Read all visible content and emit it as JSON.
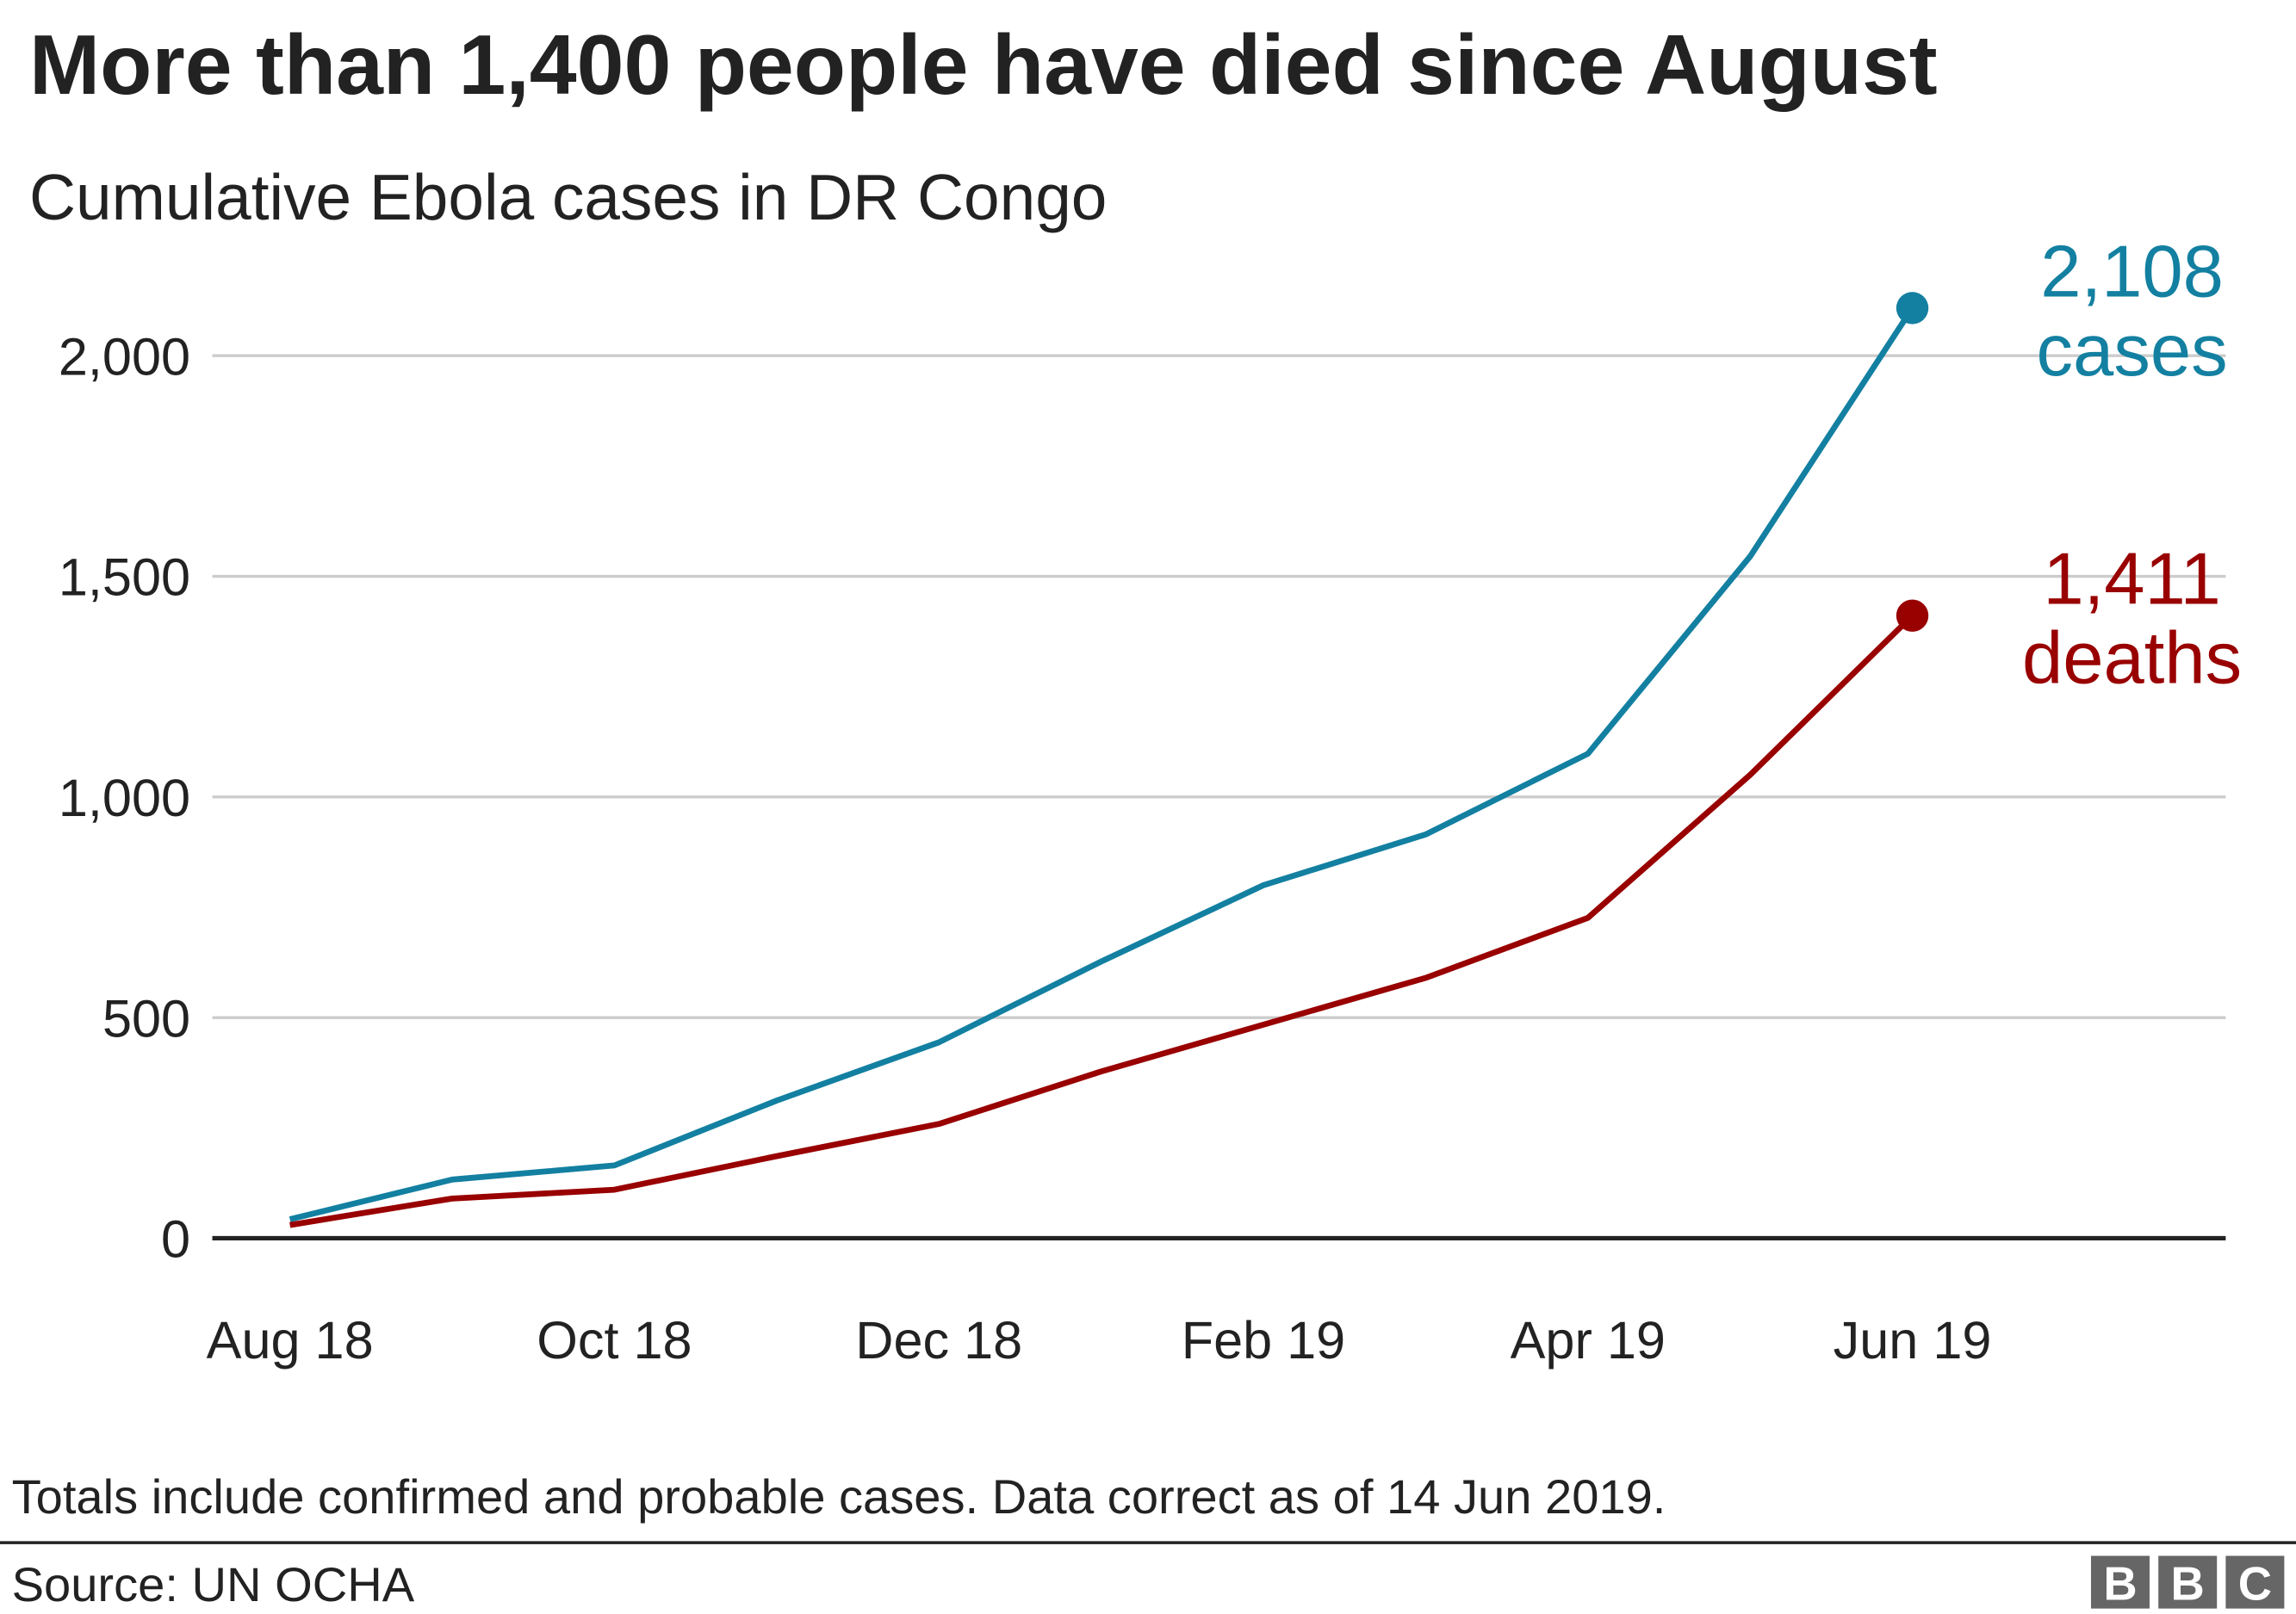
{
  "chart_data": {
    "type": "line",
    "title": "More than 1,400 people have died since August",
    "subtitle": "Cumulative Ebola cases in DR Congo",
    "categories": [
      "Aug 18",
      null,
      "Oct 18",
      null,
      "Dec 18",
      null,
      "Feb 19",
      null,
      "Apr 19",
      null,
      "Jun 19"
    ],
    "series": [
      {
        "name": "cases",
        "color": "#1380a1",
        "values": [
          43,
          133,
          165,
          312,
          444,
          627,
          800,
          915,
          1098,
          1545,
          2108
        ],
        "end_label": "2,108"
      },
      {
        "name": "deaths",
        "color": "#990000",
        "values": [
          30,
          90,
          110,
          186,
          259,
          378,
          484,
          590,
          726,
          1050,
          1411
        ],
        "end_label": "1,411"
      }
    ],
    "ylim": [
      0,
      2000
    ],
    "yticks": [
      0,
      {
        "value": 500,
        "label": "500"
      },
      {
        "value": 1000,
        "label": "1,000"
      },
      {
        "value": 1500,
        "label": "1,500"
      },
      {
        "value": 2000,
        "label": "2,000"
      }
    ],
    "grid": true,
    "note": "Totals include confirmed and probable cases. Data correct as of 14 Jun 2019.",
    "source": "Source: UN OCHA",
    "logo": [
      "B",
      "B",
      "C"
    ]
  }
}
